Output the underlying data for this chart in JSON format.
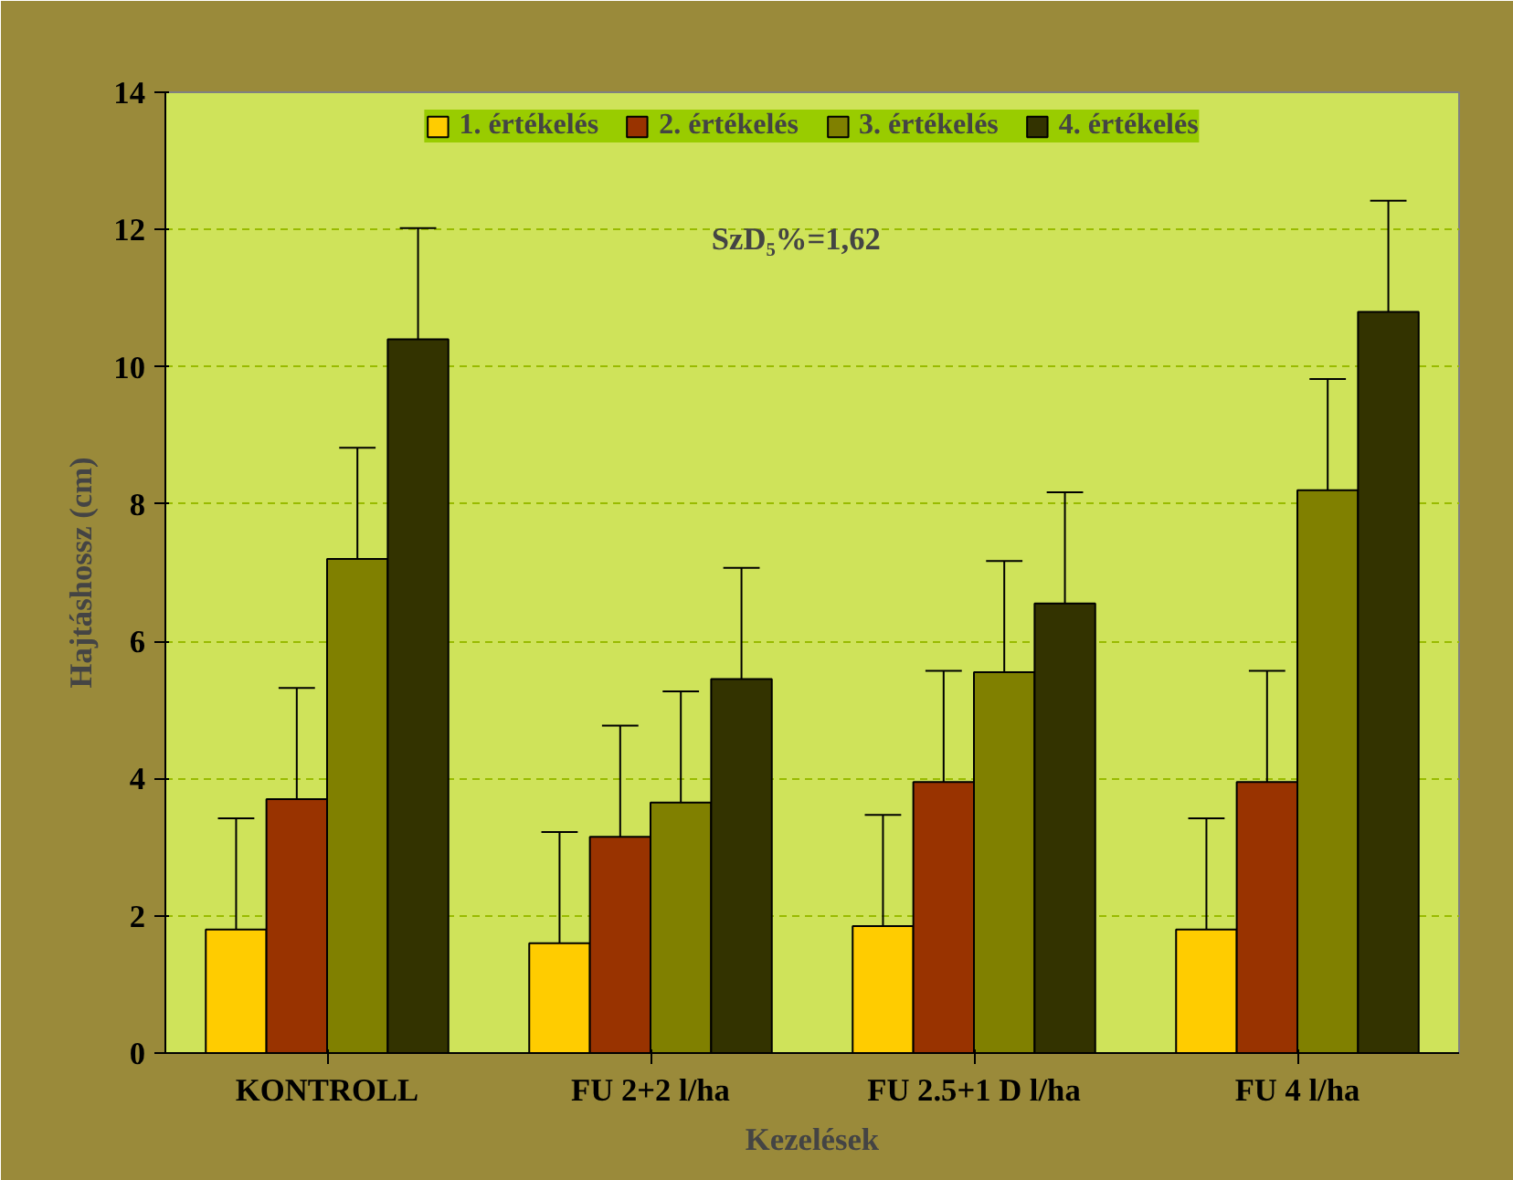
{
  "chart_data": {
    "type": "bar",
    "xlabel": "Kezelések",
    "ylabel": "Hajtáshossz (cm)",
    "categories": [
      "KONTROLL",
      "FU 2+2 l/ha",
      "FU 2.5+1 D l/ha",
      "FU 4 l/ha"
    ],
    "series": [
      {
        "name": "1. értékelés",
        "color": "#ffcc00",
        "values": [
          1.8,
          1.6,
          1.85,
          1.8
        ],
        "errors": [
          [
            1.8,
            3.42
          ],
          [
            1.6,
            3.22
          ],
          [
            1.85,
            3.47
          ],
          [
            1.8,
            3.42
          ]
        ]
      },
      {
        "name": "2. értékelés",
        "color": "#993300",
        "values": [
          3.7,
          3.15,
          3.95,
          3.95
        ],
        "errors": [
          [
            3.7,
            5.32
          ],
          [
            3.15,
            4.77
          ],
          [
            3.95,
            5.57
          ],
          [
            3.95,
            5.57
          ]
        ]
      },
      {
        "name": "3. értékelés",
        "color": "#808000",
        "values": [
          7.2,
          3.65,
          5.55,
          8.2
        ],
        "errors": [
          [
            7.2,
            8.82
          ],
          [
            3.65,
            5.27
          ],
          [
            5.55,
            7.17
          ],
          [
            8.2,
            9.82
          ]
        ]
      },
      {
        "name": "4. értékelés",
        "color": "#333300",
        "values": [
          10.4,
          5.45,
          6.55,
          10.8
        ],
        "errors": [
          [
            10.4,
            12.02
          ],
          [
            5.45,
            7.07
          ],
          [
            6.55,
            8.17
          ],
          [
            10.8,
            12.42
          ]
        ]
      }
    ],
    "annotations": [
      "SzD₅%=1,62"
    ],
    "ylim": [
      0,
      14
    ],
    "yticks": [
      0,
      2,
      4,
      6,
      8,
      10,
      12,
      14
    ],
    "grid": "y",
    "legend": "top"
  }
}
